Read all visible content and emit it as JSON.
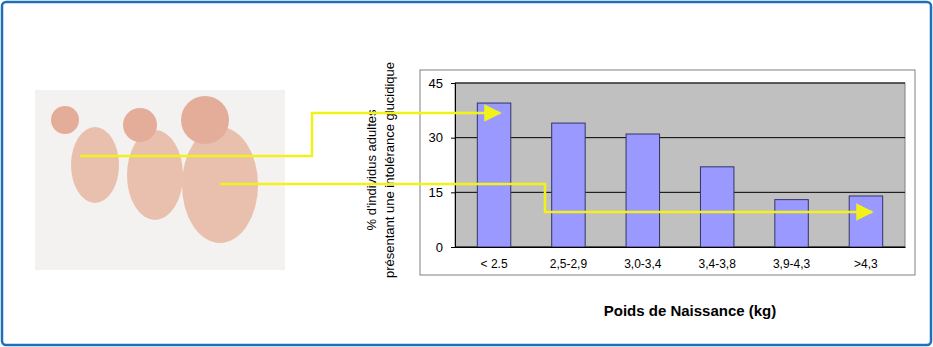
{
  "chart_data": {
    "type": "bar",
    "ylabel": [
      "% d'individus adultes",
      "présentant une intolérance glucidique"
    ],
    "xlabel": "Poids de Naissance (kg)",
    "categories": [
      "< 2.5",
      "2,5-2,9",
      "3,0-3,4",
      "3,4-3,8",
      "3,9-4,3",
      ">4,3"
    ],
    "values": [
      39.5,
      34,
      31,
      22,
      13,
      14
    ],
    "color": "#9999ff",
    "ylim": [
      0,
      45
    ],
    "yticks": [
      0,
      15,
      30,
      45
    ],
    "grid": true
  }
}
